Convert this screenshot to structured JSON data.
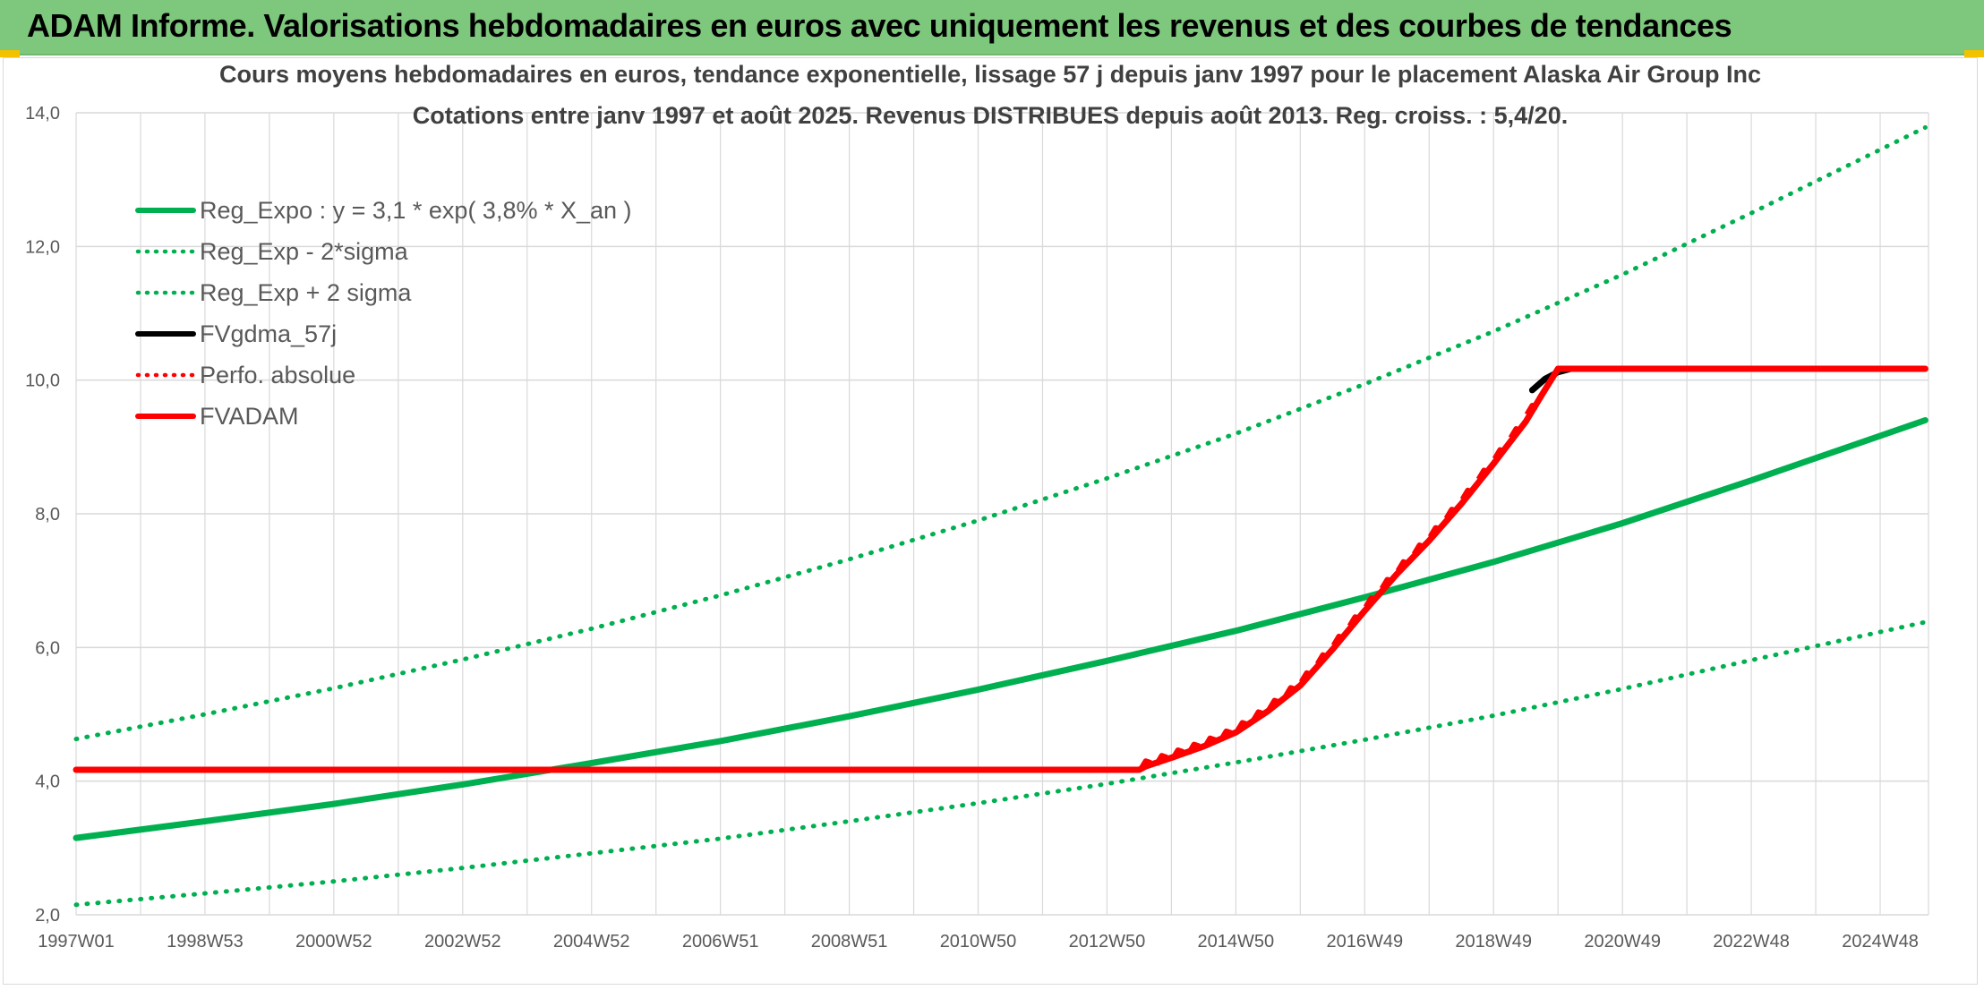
{
  "header": {
    "title": "ADAM Informe. Valorisations hebdomadaires en euros avec uniquement les revenus et des courbes de tendances"
  },
  "colors": {
    "header_bg": "#7dc87d",
    "green": "#00b050",
    "red": "#ff0000",
    "black": "#000000",
    "grid": "#d9d9d9"
  },
  "chart_data": {
    "type": "line",
    "title_lines": [
      "Cours moyens hebdomadaires en euros, tendance exponentielle, lissage 57 j depuis janv 1997 pour le placement Alaska Air Group Inc",
      "Cotations entre janv 1997 et août 2025. Revenus DISTRIBUES depuis août 2013. Reg. croiss. : 5,4/20."
    ],
    "xlabel": "",
    "ylabel": "",
    "x_tick_labels": [
      "1997W01",
      "1998W53",
      "2000W52",
      "2002W52",
      "2004W52",
      "2006W51",
      "2008W51",
      "2010W50",
      "2012W50",
      "2014W50",
      "2016W49",
      "2018W49",
      "2020W49",
      "2022W48",
      "2024W48"
    ],
    "x_tick_years": [
      1997.0,
      1999.0,
      2001.0,
      2003.0,
      2005.0,
      2007.0,
      2009.0,
      2011.0,
      2013.0,
      2015.0,
      2017.0,
      2019.0,
      2021.0,
      2023.0,
      2025.0
    ],
    "xlim": [
      1997.0,
      2025.75
    ],
    "ylim": [
      2.0,
      14.0
    ],
    "y_ticks": [
      2.0,
      4.0,
      6.0,
      8.0,
      10.0,
      12.0,
      14.0
    ],
    "y_tick_labels": [
      "2,0",
      "4,0",
      "6,0",
      "8,0",
      "10,0",
      "12,0",
      "14,0"
    ],
    "grid": true,
    "legend_position": "top-left",
    "series": [
      {
        "name": "Reg_Expo : y = 3,1 * exp( 3,8% *  X_an )",
        "style": "solid",
        "color": "#00b050",
        "x": [
          1997,
          1999,
          2001,
          2003,
          2005,
          2007,
          2009,
          2011,
          2013,
          2015,
          2017,
          2019,
          2021,
          2023,
          2025.7
        ],
        "y": [
          3.15,
          3.4,
          3.66,
          3.95,
          4.27,
          4.6,
          4.97,
          5.37,
          5.8,
          6.25,
          6.75,
          7.28,
          7.86,
          8.5,
          9.4
        ]
      },
      {
        "name": "Reg_Exp - 2*sigma",
        "style": "dotted",
        "color": "#00b050",
        "x": [
          1997,
          1999,
          2001,
          2003,
          2005,
          2007,
          2009,
          2011,
          2013,
          2015,
          2017,
          2019,
          2021,
          2023,
          2025.7
        ],
        "y": [
          2.15,
          2.32,
          2.5,
          2.7,
          2.92,
          3.14,
          3.4,
          3.67,
          3.96,
          4.28,
          4.62,
          4.98,
          5.38,
          5.81,
          6.38
        ]
      },
      {
        "name": "Reg_Exp + 2 sigma",
        "style": "dotted",
        "color": "#00b050",
        "x": [
          1997,
          1999,
          2001,
          2003,
          2005,
          2007,
          2009,
          2011,
          2013,
          2015,
          2017,
          2019,
          2021,
          2023,
          2025.7
        ],
        "y": [
          4.63,
          5.0,
          5.39,
          5.82,
          6.28,
          6.78,
          7.32,
          7.9,
          8.53,
          9.2,
          9.94,
          10.73,
          11.58,
          12.5,
          13.78
        ]
      },
      {
        "name": "FVgdma_57j",
        "style": "solid",
        "color": "#000000",
        "x": [
          2019.6,
          2019.8,
          2020.0,
          2020.2
        ],
        "y": [
          9.85,
          10.02,
          10.12,
          10.17
        ]
      },
      {
        "name": "Perfo. absolue",
        "style": "dotted",
        "color": "#ff0000",
        "x": [],
        "y": []
      },
      {
        "name": "FVADAM",
        "style": "solid",
        "color": "#ff0000",
        "x": [
          1997,
          2013.5,
          2013.6,
          2014.0,
          2014.5,
          2015.0,
          2015.5,
          2016.0,
          2016.5,
          2017.0,
          2017.5,
          2018.0,
          2018.5,
          2019.0,
          2019.5,
          2019.75,
          2020.0,
          2025.7
        ],
        "y": [
          4.17,
          4.17,
          4.22,
          4.35,
          4.52,
          4.73,
          5.05,
          5.43,
          5.97,
          6.55,
          7.1,
          7.6,
          8.15,
          8.75,
          9.38,
          9.78,
          10.17,
          10.17
        ]
      }
    ]
  }
}
